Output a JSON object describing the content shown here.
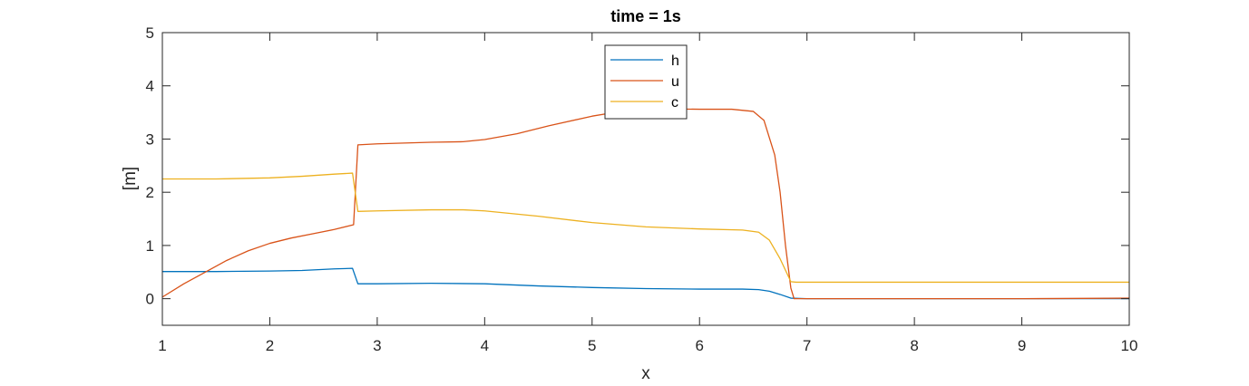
{
  "chart_data": {
    "type": "line",
    "title": "time = 1s",
    "xlabel": "x",
    "ylabel": "[m]",
    "xlim": [
      1,
      10
    ],
    "ylim": [
      -0.5,
      5
    ],
    "xticks": [
      "1",
      "2",
      "3",
      "4",
      "5",
      "6",
      "7",
      "8",
      "9",
      "10"
    ],
    "yticks": [
      "0",
      "1",
      "2",
      "3",
      "4",
      "5"
    ],
    "grid": false,
    "legend_position": "top-center",
    "series": [
      {
        "name": "h",
        "color": "#0072BD",
        "points": [
          [
            1,
            0.51
          ],
          [
            1.5,
            0.51
          ],
          [
            2.0,
            0.52
          ],
          [
            2.3,
            0.53
          ],
          [
            2.6,
            0.56
          ],
          [
            2.77,
            0.57
          ],
          [
            2.82,
            0.28
          ],
          [
            3.0,
            0.28
          ],
          [
            3.5,
            0.29
          ],
          [
            4.0,
            0.28
          ],
          [
            4.5,
            0.24
          ],
          [
            5.0,
            0.21
          ],
          [
            5.5,
            0.19
          ],
          [
            6.0,
            0.18
          ],
          [
            6.4,
            0.18
          ],
          [
            6.55,
            0.17
          ],
          [
            6.65,
            0.14
          ],
          [
            6.75,
            0.08
          ],
          [
            6.85,
            0.01
          ],
          [
            7.0,
            0.0
          ],
          [
            8.0,
            0.0
          ],
          [
            9.0,
            0.0
          ],
          [
            10.0,
            0.0
          ]
        ]
      },
      {
        "name": "u",
        "color": "#D95319",
        "points": [
          [
            1,
            0.03
          ],
          [
            1.2,
            0.28
          ],
          [
            1.4,
            0.5
          ],
          [
            1.6,
            0.72
          ],
          [
            1.8,
            0.9
          ],
          [
            2.0,
            1.04
          ],
          [
            2.2,
            1.14
          ],
          [
            2.4,
            1.22
          ],
          [
            2.6,
            1.3
          ],
          [
            2.78,
            1.39
          ],
          [
            2.82,
            2.89
          ],
          [
            3.0,
            2.91
          ],
          [
            3.5,
            2.94
          ],
          [
            3.8,
            2.95
          ],
          [
            4.0,
            2.99
          ],
          [
            4.3,
            3.1
          ],
          [
            4.6,
            3.25
          ],
          [
            5.0,
            3.43
          ],
          [
            5.3,
            3.53
          ],
          [
            5.6,
            3.57
          ],
          [
            6.0,
            3.56
          ],
          [
            6.3,
            3.56
          ],
          [
            6.5,
            3.52
          ],
          [
            6.6,
            3.35
          ],
          [
            6.7,
            2.7
          ],
          [
            6.75,
            2.0
          ],
          [
            6.8,
            1.0
          ],
          [
            6.85,
            0.2
          ],
          [
            6.88,
            0.0
          ],
          [
            7.0,
            0.0
          ],
          [
            8.0,
            0.0
          ],
          [
            9.0,
            0.0
          ],
          [
            10.0,
            0.01
          ]
        ]
      },
      {
        "name": "c",
        "color": "#EDB120",
        "points": [
          [
            1,
            2.25
          ],
          [
            1.5,
            2.25
          ],
          [
            2.0,
            2.27
          ],
          [
            2.3,
            2.3
          ],
          [
            2.6,
            2.34
          ],
          [
            2.77,
            2.36
          ],
          [
            2.82,
            1.64
          ],
          [
            3.0,
            1.65
          ],
          [
            3.5,
            1.67
          ],
          [
            3.8,
            1.67
          ],
          [
            4.0,
            1.65
          ],
          [
            4.5,
            1.55
          ],
          [
            5.0,
            1.43
          ],
          [
            5.5,
            1.35
          ],
          [
            6.0,
            1.31
          ],
          [
            6.4,
            1.29
          ],
          [
            6.55,
            1.25
          ],
          [
            6.65,
            1.1
          ],
          [
            6.75,
            0.75
          ],
          [
            6.85,
            0.32
          ],
          [
            6.9,
            0.31
          ],
          [
            7.0,
            0.31
          ],
          [
            8.0,
            0.31
          ],
          [
            9.0,
            0.31
          ],
          [
            10.0,
            0.31
          ]
        ]
      }
    ]
  }
}
